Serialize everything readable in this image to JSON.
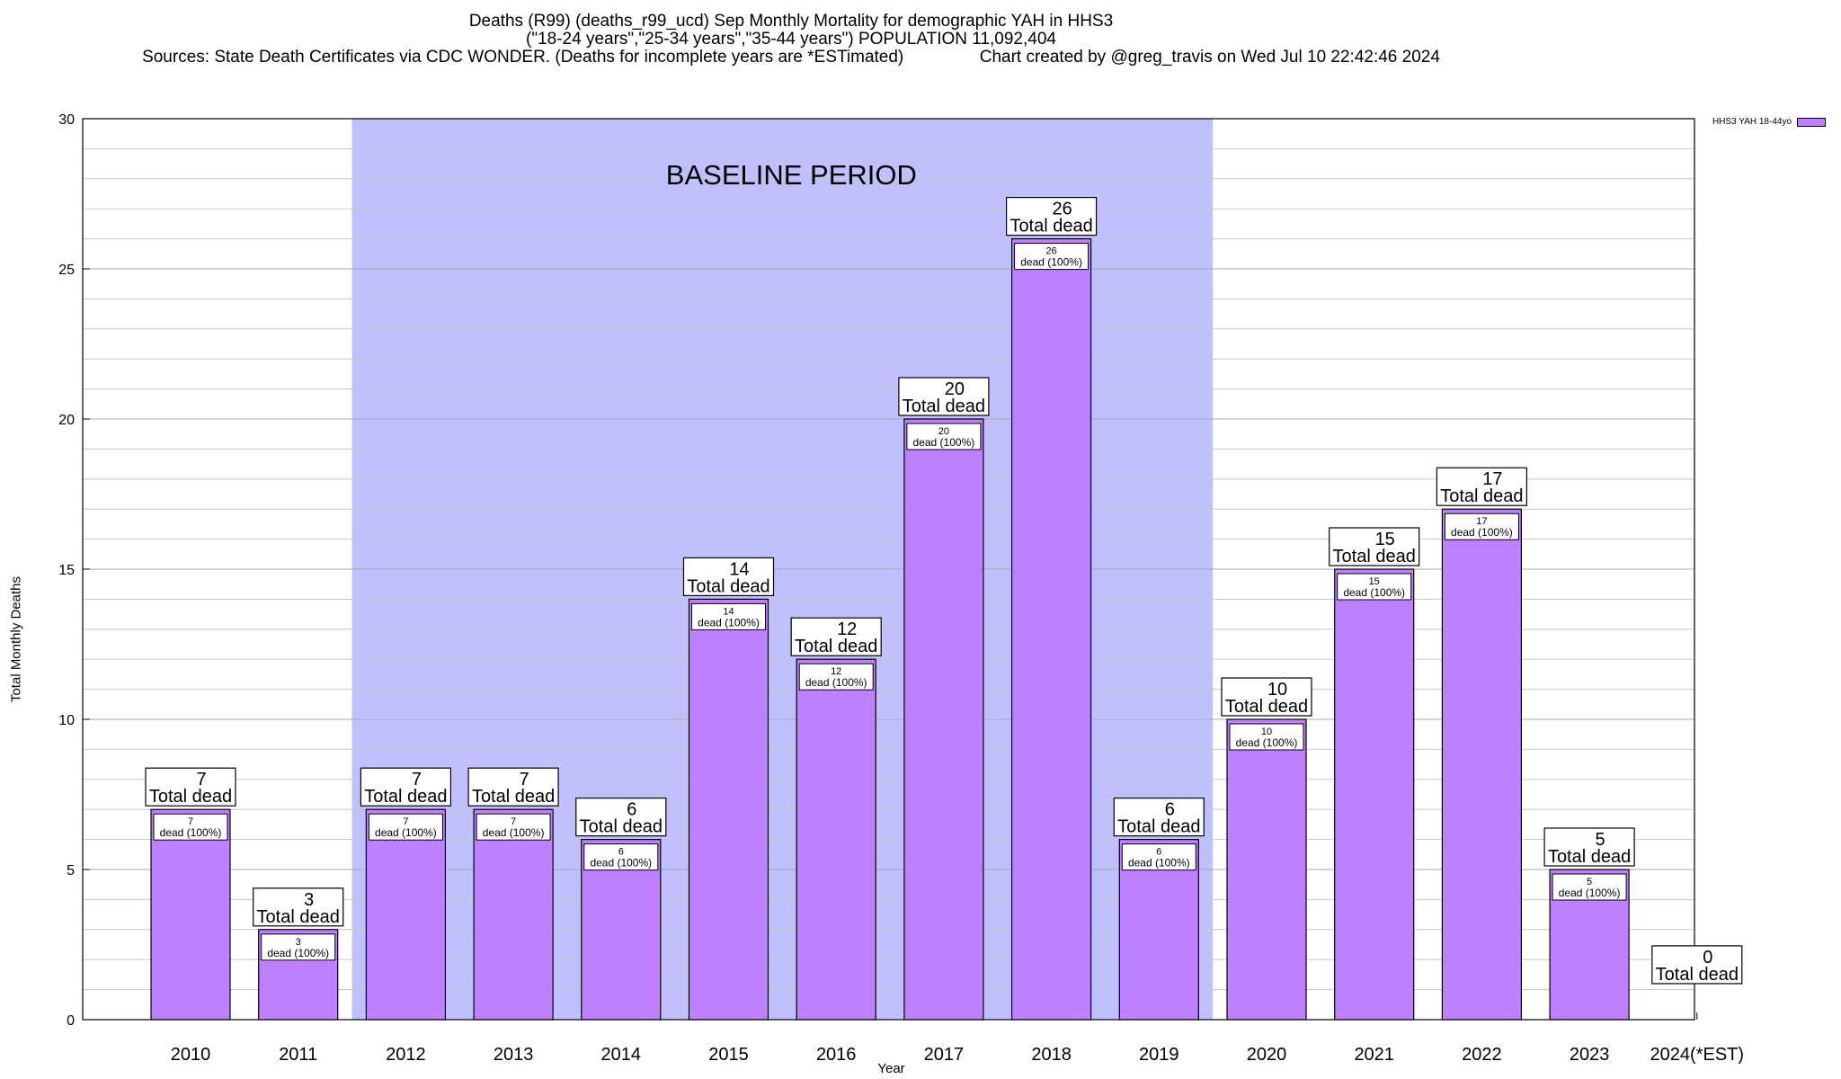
{
  "titles": {
    "line1": "Deaths (R99) (deaths_r99_ucd) Sep Monthly Mortality for demographic YAH in HHS3",
    "line2": "(\"18-24 years\",\"25-34 years\",\"35-44 years\") POPULATION 11,092,404",
    "line3": "Sources: State Death Certificates via CDC WONDER. (Deaths for incomplete years are *ESTimated)                Chart created by @greg_travis on Wed Jul 10 22:42:46 2024"
  },
  "colors": {
    "bar": "#bf80ff",
    "baseline": "#c0c0ff",
    "grid": "#c8c8c8"
  },
  "chart_data": {
    "type": "bar",
    "title": "Deaths (R99) (deaths_r99_ucd) Sep Monthly Mortality for demographic YAH in HHS3",
    "xlabel": "Year",
    "ylabel": "Total Monthly Deaths",
    "ylim": [
      0,
      30
    ],
    "yticks": [
      0,
      5,
      10,
      15,
      20,
      25,
      30
    ],
    "minor_grid_step": 1,
    "categories": [
      "2010",
      "2011",
      "2012",
      "2013",
      "2014",
      "2015",
      "2016",
      "2017",
      "2018",
      "2019",
      "2020",
      "2021",
      "2022",
      "2023",
      "2024(*EST)"
    ],
    "series": [
      {
        "name": "HHS3 YAH 18-44yo",
        "values": [
          7,
          3,
          7,
          7,
          6,
          14,
          12,
          20,
          26,
          6,
          10,
          15,
          17,
          5,
          0
        ]
      }
    ],
    "baseline_period": {
      "label": "BASELINE PERIOD",
      "from": "2012",
      "to": "2019"
    },
    "top_label_suffix": "Total dead",
    "inner_label_suffix": "dead (100%)",
    "legend_position": "top-right"
  }
}
